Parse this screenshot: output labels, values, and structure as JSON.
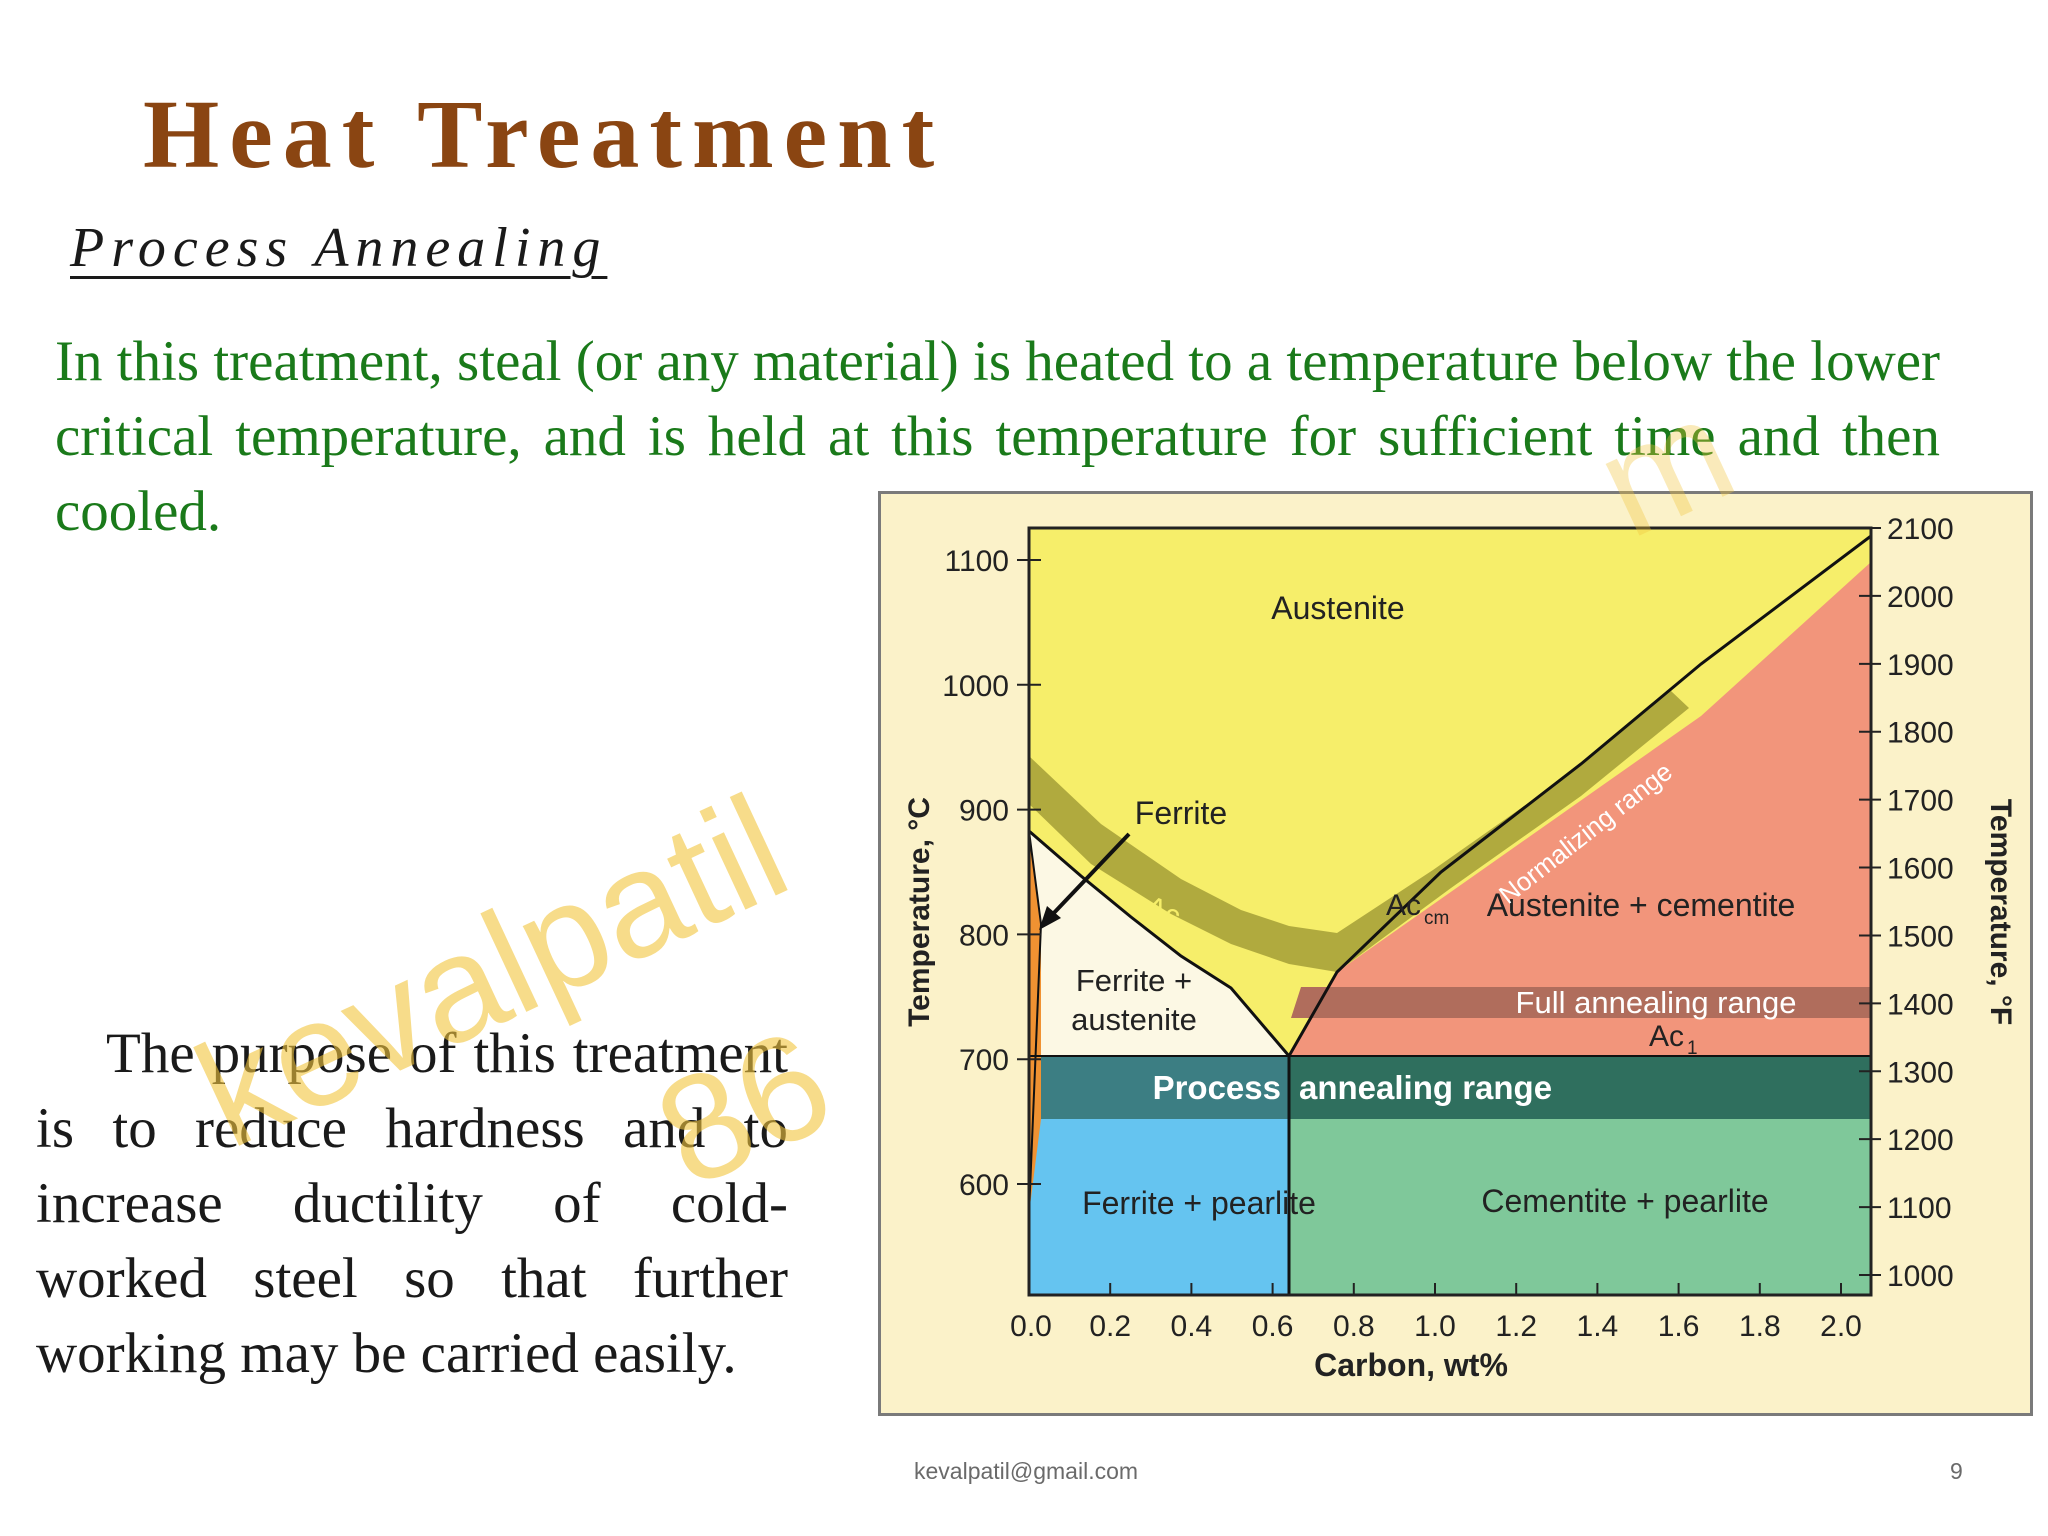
{
  "slide": {
    "title": "Heat Treatment",
    "subtitle": "Process Annealing",
    "paragraph1": "In this treatment, steal (or any material) is heated to a temperature  below the lower critical temperature, and is held at this temperature for sufficient time and then cooled.",
    "paragraph2": "The purpose of this treatment is to reduce hardness and to increase ductility of cold-worked steel so that further working may be carried easily.",
    "bullet_glyph": "",
    "watermark_line1": "kevalpatil",
    "watermark_line2": "86",
    "watermark_fragment": "m"
  },
  "footer": {
    "email": "kevalpatil@gmail.com",
    "page_number": "9"
  },
  "diagram": {
    "x_axis_label": "Carbon, wt%",
    "y_left_label": "Temperature, °C",
    "y_right_label": "Temperature, °F",
    "x_ticks": [
      "0.0",
      "0.2",
      "0.4",
      "0.6",
      "0.8",
      "1.0",
      "1.2",
      "1.4",
      "1.6",
      "1.8",
      "2.0"
    ],
    "y_left_ticks": [
      "1100",
      "1000",
      "900",
      "800",
      "700",
      "600"
    ],
    "y_right_ticks": [
      "2100",
      "2000",
      "1900",
      "1800",
      "1700",
      "1600",
      "1500",
      "1400",
      "1300",
      "1200",
      "1100",
      "1000"
    ],
    "regions": {
      "austenite": "Austenite",
      "ferrite": "Ferrite",
      "ferrite_austenite_1": "Ferrite +",
      "ferrite_austenite_2": "austenite",
      "austenite_cementite": "Austenite + cementite",
      "ferrite_pearlite": "Ferrite + pearlite",
      "cementite_pearlite": "Cementite + pearlite"
    },
    "labels": {
      "ac3": "Ac",
      "ac3_sub": "3",
      "accm": "Ac",
      "accm_sub": "cm",
      "ac1": "Ac",
      "ac1_sub": "1",
      "normalizing": "Normalizing range",
      "full_annealing": "Full annealing range",
      "process_annealing_1": "Process",
      "process_annealing_2": "annealing range"
    },
    "colors": {
      "austenite": "#f6ee6a",
      "austenite_cementite": "#f2957b",
      "ferrite_pearlite": "#65c4f0",
      "cementite_pearlite": "#7fc89a",
      "process_band": "#3c7e83",
      "full_annealing_band": "#b06d5c",
      "normalizing_band": "#a8a23a",
      "ferrite_sliver": "#f09232",
      "background": "#fbf2c9"
    }
  }
}
